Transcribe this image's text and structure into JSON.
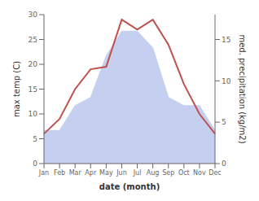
{
  "chart_data": {
    "type": "line",
    "xlabel": "date (month)",
    "ylabel": "max temp (C)",
    "y2label": "med. precipitation (kg/m2)",
    "categories": [
      "Jan",
      "Feb",
      "Mar",
      "Apr",
      "May",
      "Jun",
      "Jul",
      "Aug",
      "Sep",
      "Oct",
      "Nov",
      "Dec"
    ],
    "series": [
      {
        "type": "area",
        "color": "#c5cff0",
        "axis": "y2",
        "values": [
          4,
          4,
          7,
          8,
          13,
          16,
          16,
          14,
          8,
          7,
          7,
          4
        ]
      },
      {
        "type": "line",
        "color": "#c0504d",
        "values": [
          6,
          9,
          15,
          19,
          19.5,
          29,
          27,
          29,
          24,
          16,
          10,
          6
        ]
      }
    ],
    "ylim": [
      0,
      30
    ],
    "yticks": [
      0,
      5,
      10,
      15,
      20,
      25,
      30
    ],
    "y2lim": [
      0,
      18
    ],
    "y2ticks": [
      0,
      5,
      10,
      15
    ],
    "grid": false
  }
}
